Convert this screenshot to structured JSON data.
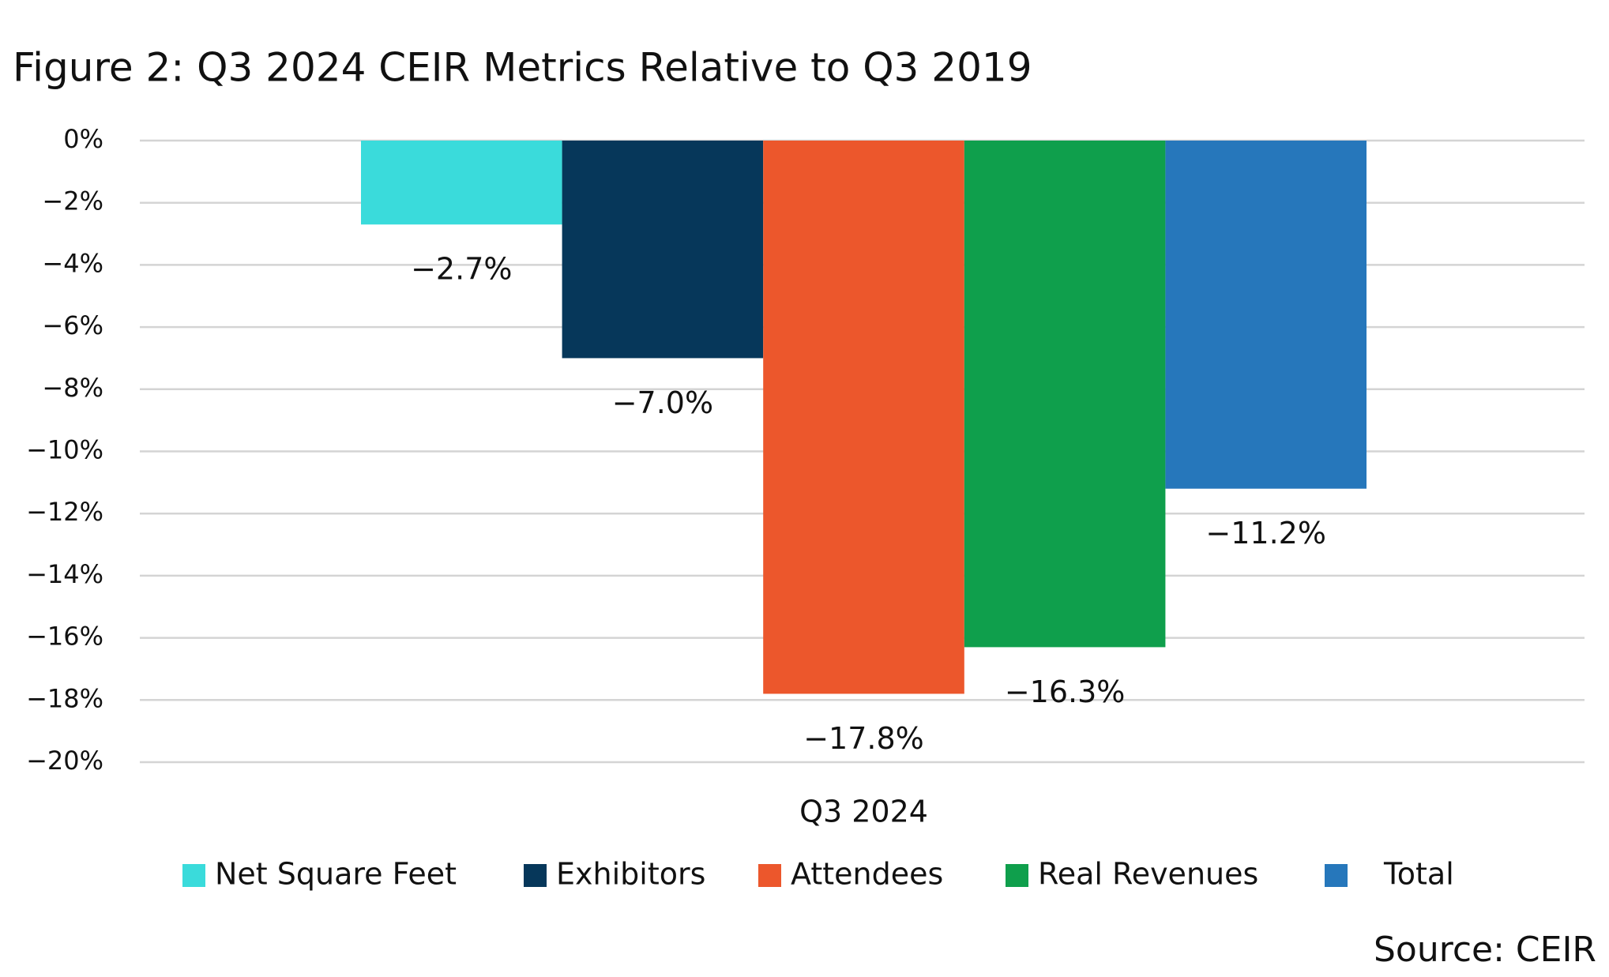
{
  "chart_data": {
    "type": "bar",
    "title": "Figure 2: Q3 2024 CEIR Metrics Relative to Q3 2019",
    "categories": [
      "Q3 2024"
    ],
    "series": [
      {
        "name": "Net Square Feet",
        "color": "#3adbdb",
        "values": [
          -2.7
        ],
        "value_labels": [
          "−2.7%"
        ]
      },
      {
        "name": "Exhibitors",
        "color": "#06375a",
        "values": [
          -7.0
        ],
        "value_labels": [
          "−7.0%"
        ]
      },
      {
        "name": "Attendees",
        "color": "#ec572c",
        "values": [
          -17.8
        ],
        "value_labels": [
          "−17.8%"
        ]
      },
      {
        "name": "Real Revenues",
        "color": "#0f9f4c",
        "values": [
          -16.3
        ],
        "value_labels": [
          "−16.3%"
        ]
      },
      {
        "name": "Total",
        "color": "#2677bb",
        "values": [
          -11.2
        ],
        "value_labels": [
          "−11.2%"
        ]
      }
    ],
    "ylim": [
      -20,
      0
    ],
    "yticks": [
      {
        "value": 0,
        "label": "0%"
      },
      {
        "value": -2,
        "label": "−2%"
      },
      {
        "value": -4,
        "label": "−4%"
      },
      {
        "value": -6,
        "label": "−6%"
      },
      {
        "value": -8,
        "label": "−8%"
      },
      {
        "value": -10,
        "label": "−10%"
      },
      {
        "value": -12,
        "label": "−12%"
      },
      {
        "value": -14,
        "label": "−14%"
      },
      {
        "value": -16,
        "label": "−16%"
      },
      {
        "value": -18,
        "label": "−18%"
      },
      {
        "value": -20,
        "label": "−20%"
      }
    ],
    "grid": true,
    "legend": "bottom",
    "source": "Source: CEIR"
  }
}
